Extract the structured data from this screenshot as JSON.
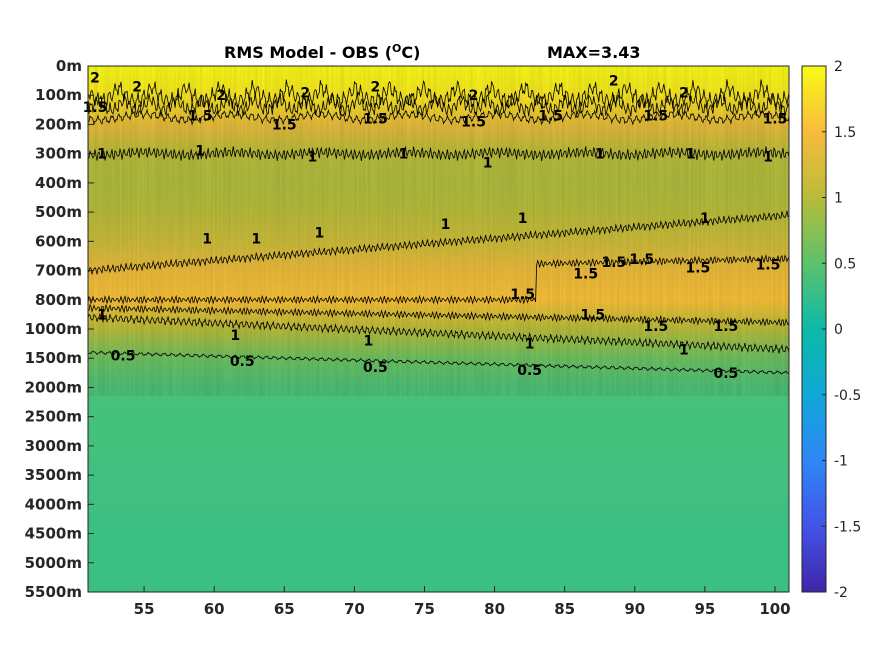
{
  "chart_data": {
    "type": "heatmap",
    "title": "RMS Model - OBS (",
    "title_unit_sup": "O",
    "title_unit_after": "C)",
    "max_label": "MAX=3.43",
    "xticks": [
      55,
      60,
      65,
      70,
      75,
      80,
      85,
      90,
      95,
      100
    ],
    "xlim": [
      51,
      101
    ],
    "yticks": [
      "0m",
      "100m",
      "200m",
      "300m",
      "400m",
      "500m",
      "600m",
      "700m",
      "800m",
      "1000m",
      "1500m",
      "2000m",
      "2500m",
      "3000m",
      "3500m",
      "4000m",
      "4500m",
      "5000m",
      "5500m"
    ],
    "colorbar": {
      "ticks": [
        "2",
        "1.5",
        "1",
        "0.5",
        "0",
        "-0.5",
        "-1",
        "-1.5",
        "-2"
      ],
      "range": [
        -2,
        2
      ],
      "colormap": "parula"
    },
    "rms_profile_by_depth_level": [
      {
        "level": "0m",
        "value": 2.0
      },
      {
        "level": "100m",
        "value": 1.85
      },
      {
        "level": "200m",
        "value": 1.35
      },
      {
        "level": "300m",
        "value": 1.0
      },
      {
        "level": "400m",
        "value": 0.95
      },
      {
        "level": "500m",
        "value": 1.0
      },
      {
        "level": "600m",
        "value": 1.15
      },
      {
        "level": "700m",
        "value": 1.4
      },
      {
        "level": "800m",
        "value": 1.55
      },
      {
        "level": "1000m",
        "value": 1.0
      },
      {
        "level": "1500m",
        "value": 0.6
      },
      {
        "level": "2000m",
        "value": 0.4
      },
      {
        "level": "2500m",
        "value": 0.35
      },
      {
        "level": "3000m",
        "value": 0.35
      },
      {
        "level": "3500m",
        "value": 0.33
      },
      {
        "level": "4000m",
        "value": 0.32
      },
      {
        "level": "4500m",
        "value": 0.3
      },
      {
        "level": "5000m",
        "value": 0.3
      },
      {
        "level": "5500m",
        "value": 0.3
      }
    ],
    "contour_labels": [
      {
        "text": "2",
        "x": 51.5,
        "level": 0.4
      },
      {
        "text": "2",
        "x": 54.5,
        "level": 0.7
      },
      {
        "text": "2",
        "x": 60.5,
        "level": 1.0
      },
      {
        "text": "2",
        "x": 66.5,
        "level": 0.9
      },
      {
        "text": "2",
        "x": 71.5,
        "level": 0.7
      },
      {
        "text": "2",
        "x": 78.5,
        "level": 1.0
      },
      {
        "text": "2",
        "x": 88.5,
        "level": 0.5
      },
      {
        "text": "2",
        "x": 93.5,
        "level": 0.9
      },
      {
        "text": "1.5",
        "x": 51.5,
        "level": 1.4
      },
      {
        "text": "1.5",
        "x": 59.0,
        "level": 1.7
      },
      {
        "text": "1.5",
        "x": 65.0,
        "level": 2.0
      },
      {
        "text": "1.5",
        "x": 71.5,
        "level": 1.8
      },
      {
        "text": "1.5",
        "x": 78.5,
        "level": 1.9
      },
      {
        "text": "1.5",
        "x": 84.0,
        "level": 1.7
      },
      {
        "text": "1.5",
        "x": 91.5,
        "level": 1.7
      },
      {
        "text": "1.5",
        "x": 100.0,
        "level": 1.8
      },
      {
        "text": "1",
        "x": 52.0,
        "level": 3.0
      },
      {
        "text": "1",
        "x": 59.0,
        "level": 2.9
      },
      {
        "text": "1",
        "x": 67.0,
        "level": 3.1
      },
      {
        "text": "1",
        "x": 73.5,
        "level": 3.0
      },
      {
        "text": "1",
        "x": 79.5,
        "level": 3.3
      },
      {
        "text": "1",
        "x": 87.5,
        "level": 3.0
      },
      {
        "text": "1",
        "x": 94.0,
        "level": 3.0
      },
      {
        "text": "1",
        "x": 99.5,
        "level": 3.1
      },
      {
        "text": "1",
        "x": 59.5,
        "level": 5.9
      },
      {
        "text": "1",
        "x": 63.0,
        "level": 5.9
      },
      {
        "text": "1",
        "x": 67.5,
        "level": 5.7
      },
      {
        "text": "1",
        "x": 76.5,
        "level": 5.4
      },
      {
        "text": "1",
        "x": 82.0,
        "level": 5.2
      },
      {
        "text": "1",
        "x": 95.0,
        "level": 5.2
      },
      {
        "text": "1",
        "x": 52.0,
        "level": 8.5
      },
      {
        "text": "1",
        "x": 61.5,
        "level": 9.2
      },
      {
        "text": "1",
        "x": 71.0,
        "level": 9.4
      },
      {
        "text": "1",
        "x": 82.5,
        "level": 9.5
      },
      {
        "text": "1",
        "x": 93.5,
        "level": 9.7
      },
      {
        "text": "1.5",
        "x": 82.0,
        "level": 7.8
      },
      {
        "text": "1.5",
        "x": 86.5,
        "level": 7.1
      },
      {
        "text": "1.5",
        "x": 88.5,
        "level": 6.7
      },
      {
        "text": "1.5",
        "x": 90.5,
        "level": 6.6
      },
      {
        "text": "1.5",
        "x": 94.5,
        "level": 6.9
      },
      {
        "text": "1.5",
        "x": 99.5,
        "level": 6.8
      },
      {
        "text": "1.5",
        "x": 87.0,
        "level": 8.5
      },
      {
        "text": "1.5",
        "x": 91.5,
        "level": 8.9
      },
      {
        "text": "1.5",
        "x": 96.5,
        "level": 8.9
      },
      {
        "text": "0.5",
        "x": 53.5,
        "level": 9.9
      },
      {
        "text": "0.5",
        "x": 62.0,
        "level": 10.1
      },
      {
        "text": "0.5",
        "x": 71.5,
        "level": 10.3
      },
      {
        "text": "0.5",
        "x": 82.5,
        "level": 10.4
      },
      {
        "text": "0.5",
        "x": 96.5,
        "level": 10.5
      }
    ],
    "grid": false
  }
}
